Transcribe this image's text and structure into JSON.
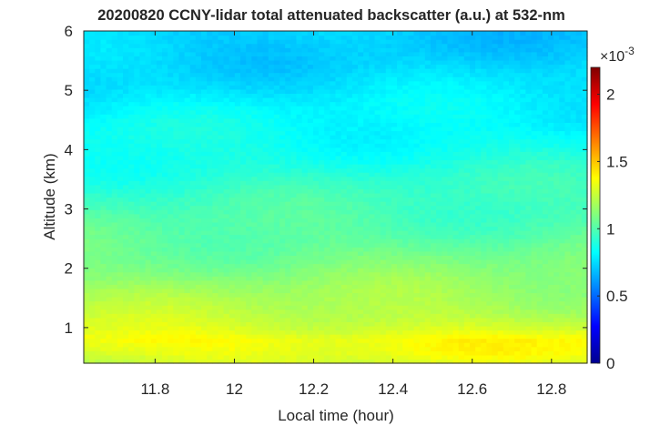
{
  "chart_data": {
    "type": "heatmap",
    "title": "20200820 CCNY-lidar total attenuated backscatter (a.u.) at 532-nm",
    "xlabel": "Local time (hour)",
    "ylabel": "Altitude (km)",
    "xlim": [
      11.62,
      12.89
    ],
    "ylim": [
      0.4,
      6.0
    ],
    "x_ticks": [
      11.8,
      12.0,
      12.2,
      12.4,
      12.6,
      12.8
    ],
    "x_tick_labels": [
      "11.8",
      "12",
      "12.2",
      "12.4",
      "12.6",
      "12.8"
    ],
    "y_ticks": [
      1,
      2,
      3,
      4,
      5,
      6
    ],
    "y_tick_labels": [
      "1",
      "2",
      "3",
      "4",
      "5",
      "6"
    ],
    "colorbar": {
      "colormap": "jet",
      "clim": [
        0,
        0.0022
      ],
      "ticks": [
        0,
        0.0005,
        0.001,
        0.0015,
        0.002
      ],
      "tick_labels": [
        "0",
        "0.5",
        "1",
        "1.5",
        "2"
      ],
      "exponent_label": "×10",
      "exponent_power": "-3"
    },
    "altitude_profile_km": [
      0.4,
      0.6,
      0.8,
      1.0,
      1.2,
      1.5,
      1.8,
      2.0,
      2.5,
      3.0,
      3.5,
      4.0,
      4.5,
      5.0,
      5.5,
      6.0
    ],
    "backscatter_profile": [
      0.00128,
      0.00135,
      0.00138,
      0.0013,
      0.00124,
      0.00118,
      0.00113,
      0.0011,
      0.00104,
      0.00097,
      0.00092,
      0.00087,
      0.00082,
      0.00077,
      0.00074,
      0.00071
    ],
    "grid": false
  }
}
